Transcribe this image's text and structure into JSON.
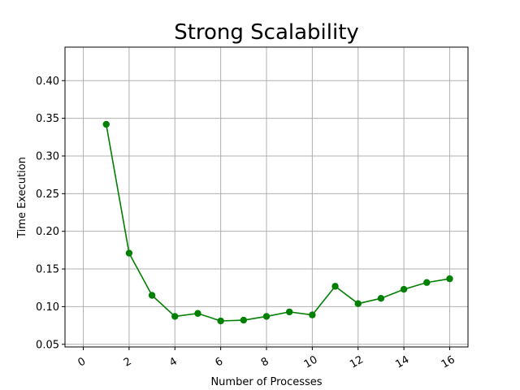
{
  "chart_data": {
    "type": "line",
    "title": "Strong Scalability",
    "xlabel": "Number of Processes",
    "ylabel": "Time Execution",
    "xlim": [
      -0.8,
      16.8
    ],
    "ylim": [
      0.0465,
      0.4445
    ],
    "xticks": [
      0,
      2,
      4,
      6,
      8,
      10,
      12,
      14,
      16
    ],
    "xtick_labels": [
      "0",
      "2",
      "4",
      "6",
      "8",
      "10",
      "12",
      "14",
      "16"
    ],
    "yticks": [
      0.05,
      0.1,
      0.15,
      0.2,
      0.25,
      0.3,
      0.35,
      0.4
    ],
    "ytick_labels": [
      "0.05",
      "0.10",
      "0.15",
      "0.20",
      "0.25",
      "0.30",
      "0.35",
      "0.40"
    ],
    "xtick_rotation_deg": 30,
    "grid": true,
    "series": [
      {
        "color": "#008000",
        "marker": "circle",
        "x": [
          1,
          2,
          3,
          4,
          5,
          6,
          7,
          8,
          9,
          10,
          11,
          12,
          13,
          14,
          15,
          16
        ],
        "y": [
          0.342,
          0.171,
          0.115,
          0.087,
          0.091,
          0.081,
          0.082,
          0.087,
          0.093,
          0.089,
          0.127,
          0.104,
          0.111,
          0.123,
          0.132,
          0.137
        ]
      }
    ]
  }
}
